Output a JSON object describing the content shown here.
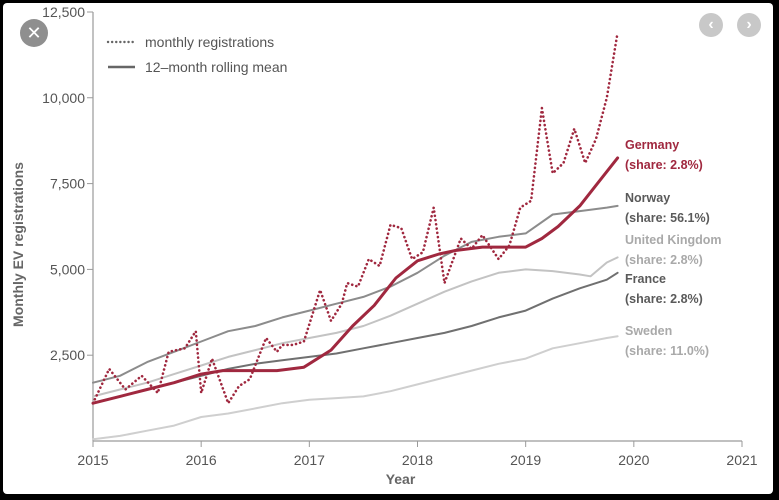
{
  "controls": {
    "close_glyph": "✕",
    "prev_glyph": "‹",
    "next_glyph": "›"
  },
  "chart_data": {
    "type": "line",
    "xlabel": "Year",
    "ylabel": "Monthly EV registrations",
    "xlim": [
      2015,
      2021
    ],
    "ylim": [
      0,
      12500
    ],
    "x_ticks": [
      "2015",
      "2016",
      "2017",
      "2018",
      "2019",
      "2020",
      "2021"
    ],
    "y_ticks": [
      "2,500",
      "5,000",
      "7,500",
      "10,000",
      "12,500"
    ],
    "grid": false,
    "legend_position": "top-left",
    "legend": [
      {
        "label": "monthly registrations",
        "style": "dotted"
      },
      {
        "label": "12–month rolling mean",
        "style": "solid"
      }
    ],
    "colors": {
      "germany": "#a0283f",
      "norway": "#8c8c8c",
      "united_kingdom": "#c3c3c3",
      "france": "#707070",
      "sweden": "#cfcfcf",
      "label_dark": "#5a5a5a",
      "label_light": "#a9a9a9"
    },
    "series_labels": [
      {
        "key": "germany",
        "name": "Germany",
        "share": "(share: 2.8%)"
      },
      {
        "key": "norway",
        "name": "Norway",
        "share": "(share: 56.1%)"
      },
      {
        "key": "united_kingdom",
        "name": "United Kingdom",
        "share": "(share: 2.8%)"
      },
      {
        "key": "france",
        "name": "France",
        "share": "(share: 2.8%)"
      },
      {
        "key": "sweden",
        "name": "Sweden",
        "share": "(share: 11.0%)"
      }
    ],
    "series": [
      {
        "name": "Germany",
        "kind": "monthly registrations",
        "x": [
          2015.0,
          2015.15,
          2015.3,
          2015.45,
          2015.6,
          2015.7,
          2015.85,
          2015.95,
          2016.0,
          2016.1,
          2016.25,
          2016.35,
          2016.45,
          2016.6,
          2016.7,
          2016.75,
          2016.85,
          2016.95,
          2017.1,
          2017.2,
          2017.3,
          2017.35,
          2017.45,
          2017.55,
          2017.65,
          2017.75,
          2017.85,
          2017.95,
          2018.05,
          2018.15,
          2018.25,
          2018.4,
          2018.5,
          2018.6,
          2018.75,
          2018.85,
          2018.95,
          2019.05,
          2019.15,
          2019.25,
          2019.35,
          2019.45,
          2019.55,
          2019.65,
          2019.75,
          2019.85
        ],
        "y": [
          1100,
          2100,
          1500,
          1900,
          1400,
          2600,
          2700,
          3200,
          1400,
          2400,
          1100,
          1600,
          1800,
          3000,
          2600,
          2800,
          2800,
          2900,
          4400,
          3500,
          4000,
          4600,
          4500,
          5300,
          5100,
          6300,
          6200,
          5300,
          5500,
          6800,
          4600,
          5900,
          5600,
          6000,
          5300,
          5700,
          6800,
          7000,
          9700,
          7800,
          8100,
          9100,
          8100,
          8800,
          10000,
          11900
        ]
      },
      {
        "name": "Germany",
        "kind": "12–month rolling mean",
        "x": [
          2015.0,
          2015.25,
          2015.5,
          2015.75,
          2016.0,
          2016.2,
          2016.5,
          2016.7,
          2016.95,
          2017.2,
          2017.4,
          2017.6,
          2017.8,
          2018.0,
          2018.2,
          2018.35,
          2018.6,
          2018.8,
          2019.0,
          2019.15,
          2019.3,
          2019.5,
          2019.65,
          2019.85
        ],
        "y": [
          1100,
          1300,
          1500,
          1700,
          1950,
          2050,
          2050,
          2050,
          2150,
          2650,
          3350,
          3950,
          4750,
          5250,
          5450,
          5550,
          5650,
          5650,
          5650,
          5900,
          6250,
          6850,
          7450,
          8250
        ]
      },
      {
        "name": "Norway",
        "kind": "12–month rolling mean",
        "x": [
          2015.0,
          2015.25,
          2015.5,
          2015.75,
          2016.0,
          2016.25,
          2016.5,
          2016.75,
          2017.0,
          2017.25,
          2017.5,
          2017.75,
          2018.0,
          2018.25,
          2018.5,
          2018.75,
          2019.0,
          2019.25,
          2019.5,
          2019.75,
          2019.85
        ],
        "y": [
          1700,
          1900,
          2300,
          2600,
          2900,
          3200,
          3350,
          3600,
          3800,
          4000,
          4200,
          4500,
          4900,
          5400,
          5800,
          5950,
          6050,
          6600,
          6700,
          6800,
          6850
        ]
      },
      {
        "name": "United Kingdom",
        "kind": "12–month rolling mean",
        "x": [
          2015.0,
          2015.25,
          2015.5,
          2015.75,
          2016.0,
          2016.25,
          2016.5,
          2016.75,
          2017.0,
          2017.25,
          2017.5,
          2017.75,
          2018.0,
          2018.25,
          2018.5,
          2018.75,
          2019.0,
          2019.25,
          2019.5,
          2019.6,
          2019.75,
          2019.85
        ],
        "y": [
          1300,
          1500,
          1700,
          1950,
          2200,
          2450,
          2650,
          2850,
          3000,
          3150,
          3350,
          3650,
          4000,
          4350,
          4650,
          4900,
          5000,
          4950,
          4850,
          4800,
          5200,
          5350
        ]
      },
      {
        "name": "France",
        "kind": "12–month rolling mean",
        "x": [
          2015.0,
          2015.25,
          2015.5,
          2015.75,
          2016.0,
          2016.25,
          2016.5,
          2016.75,
          2017.0,
          2017.25,
          2017.5,
          2017.75,
          2018.0,
          2018.25,
          2018.5,
          2018.75,
          2019.0,
          2019.25,
          2019.5,
          2019.75,
          2019.85
        ],
        "y": [
          1100,
          1300,
          1500,
          1700,
          1900,
          2100,
          2250,
          2350,
          2450,
          2550,
          2700,
          2850,
          3000,
          3150,
          3350,
          3600,
          3800,
          4150,
          4450,
          4700,
          4900
        ]
      },
      {
        "name": "Sweden",
        "kind": "12–month rolling mean",
        "x": [
          2015.0,
          2015.25,
          2015.5,
          2015.75,
          2016.0,
          2016.25,
          2016.5,
          2016.75,
          2017.0,
          2017.25,
          2017.5,
          2017.75,
          2018.0,
          2018.25,
          2018.5,
          2018.75,
          2019.0,
          2019.25,
          2019.5,
          2019.75,
          2019.85
        ],
        "y": [
          50,
          150,
          300,
          450,
          700,
          800,
          950,
          1100,
          1200,
          1250,
          1300,
          1450,
          1650,
          1850,
          2050,
          2250,
          2400,
          2700,
          2850,
          3000,
          3050
        ]
      }
    ]
  }
}
